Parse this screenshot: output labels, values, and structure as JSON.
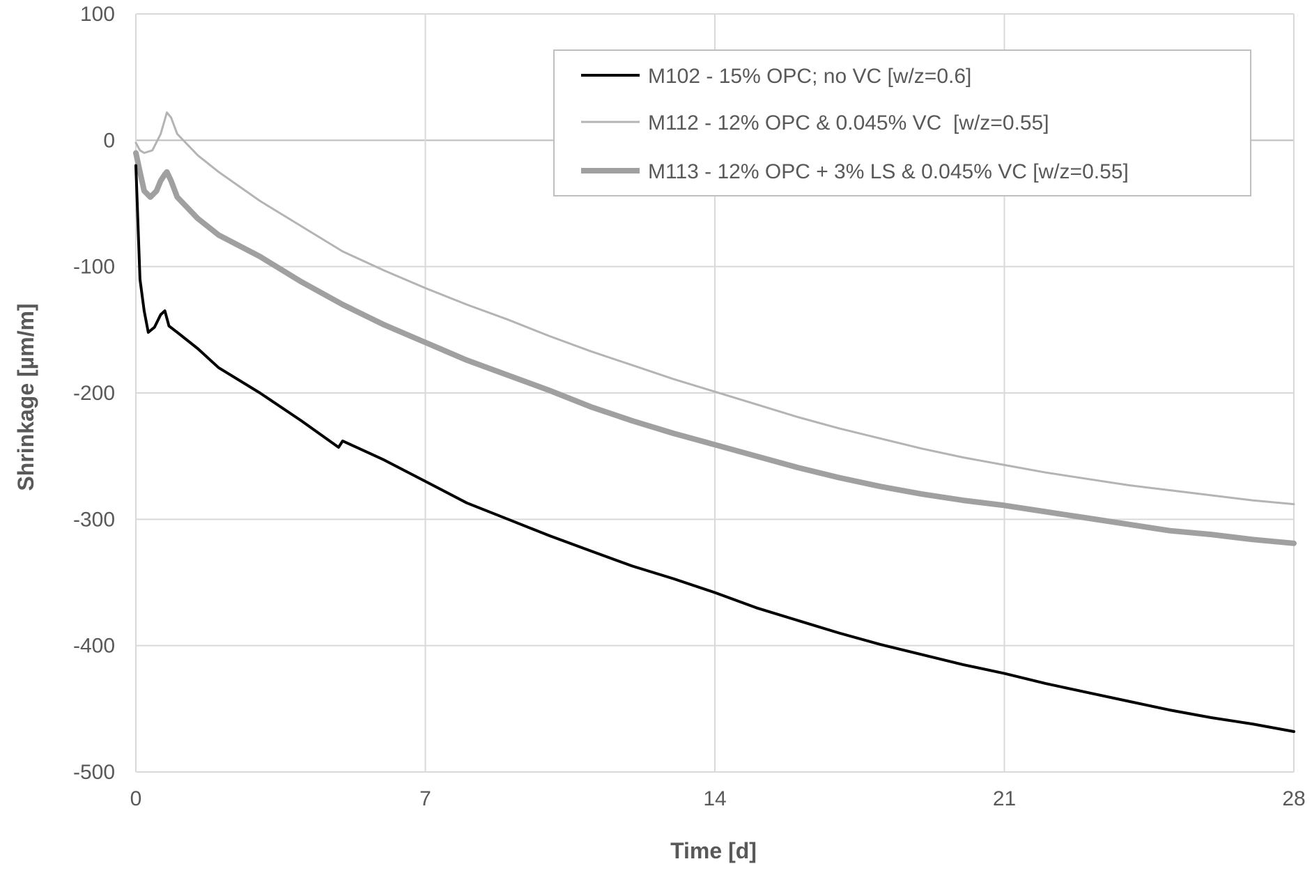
{
  "chart_data": {
    "type": "line",
    "xlabel": "Time [d]",
    "ylabel": "Shrinkage [µm/m]",
    "xlim": [
      0,
      28
    ],
    "ylim": [
      -500,
      100
    ],
    "x_ticks": [
      "0",
      "7",
      "14",
      "21",
      "28"
    ],
    "y_ticks": [
      "100",
      "0",
      "-100",
      "-200",
      "-300",
      "-400",
      "-500"
    ],
    "grid": true,
    "legend_position": "top-right",
    "series": [
      {
        "name": "M102 - 15% OPC; no VC [w/z=0.6]",
        "color": "#000000",
        "x": [
          0,
          0.1,
          0.2,
          0.3,
          0.45,
          0.6,
          0.7,
          0.8,
          1,
          1.5,
          2,
          3,
          4,
          4.9,
          5,
          6,
          7,
          8,
          9,
          10,
          11,
          12,
          13,
          14,
          15,
          16,
          17,
          18,
          19,
          20,
          21,
          22,
          23,
          24,
          25,
          26,
          27,
          28
        ],
        "y": [
          -20,
          -110,
          -135,
          -152,
          -148,
          -138,
          -135,
          -147,
          -152,
          -165,
          -180,
          -200,
          -222,
          -243,
          -238,
          -253,
          -270,
          -287,
          -300,
          -313,
          -325,
          -337,
          -347,
          -358,
          -370,
          -380,
          -390,
          -399,
          -407,
          -415,
          -422,
          -430,
          -437,
          -444,
          -451,
          -457,
          -462,
          -468
        ]
      },
      {
        "name": "M112 - 12% OPC & 0.045% VC  [w/z=0.55]",
        "color": "#b4b4b4",
        "x": [
          0,
          0.1,
          0.2,
          0.4,
          0.6,
          0.75,
          0.85,
          1,
          1.5,
          2,
          3,
          4,
          5,
          6,
          7,
          8,
          9,
          10,
          11,
          12,
          13,
          14,
          15,
          16,
          17,
          18,
          19,
          20,
          21,
          22,
          23,
          24,
          25,
          26,
          27,
          28
        ],
        "y": [
          -2,
          -8,
          -10,
          -8,
          5,
          22,
          18,
          5,
          -12,
          -25,
          -48,
          -68,
          -88,
          -103,
          -117,
          -130,
          -142,
          -155,
          -167,
          -178,
          -189,
          -199,
          -209,
          -219,
          -228,
          -236,
          -244,
          -251,
          -257,
          -263,
          -268,
          -273,
          -277,
          -281,
          -285,
          -288
        ]
      },
      {
        "name": "M113 - 12% OPC + 3% LS & 0.045% VC [w/z=0.55]",
        "color": "#a0a0a0",
        "x": [
          0,
          0.1,
          0.2,
          0.35,
          0.5,
          0.6,
          0.7,
          0.75,
          0.85,
          1,
          1.5,
          2,
          3,
          4,
          5,
          6,
          7,
          8,
          9,
          10,
          11,
          12,
          13,
          14,
          15,
          16,
          17,
          18,
          19,
          20,
          21,
          22,
          23,
          24,
          25,
          26,
          27,
          28
        ],
        "y": [
          -10,
          -25,
          -40,
          -45,
          -40,
          -32,
          -27,
          -25,
          -32,
          -45,
          -62,
          -75,
          -92,
          -112,
          -130,
          -146,
          -160,
          -174,
          -186,
          -198,
          -211,
          -222,
          -232,
          -241,
          -250,
          -259,
          -267,
          -274,
          -280,
          -285,
          -289,
          -294,
          -299,
          -304,
          -309,
          -312,
          -316,
          -319
        ]
      }
    ]
  }
}
